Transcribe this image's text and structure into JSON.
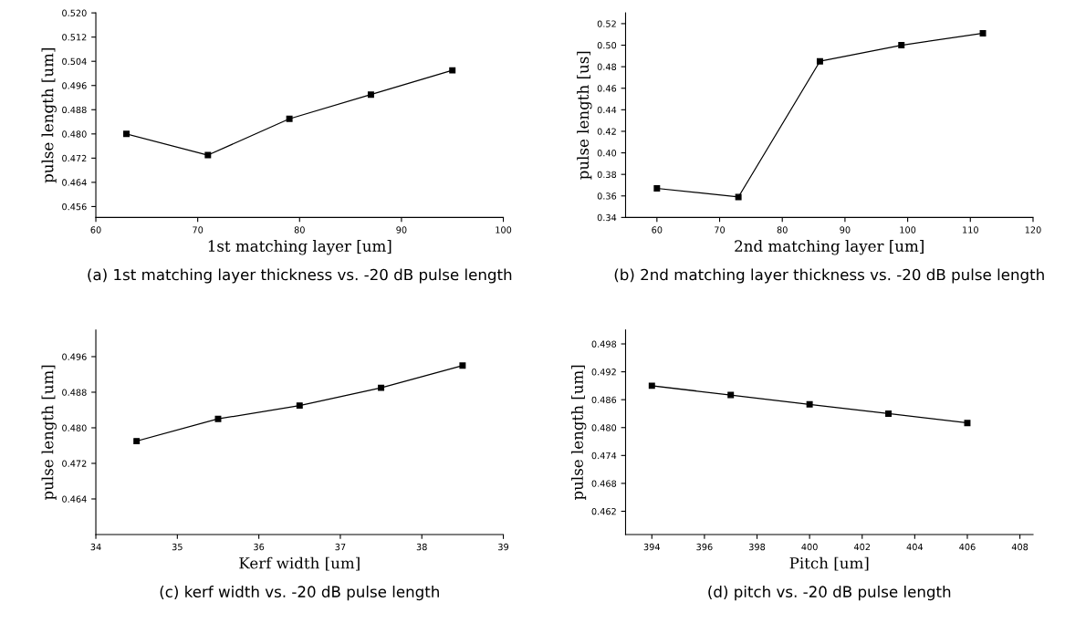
{
  "chart_data": [
    {
      "type": "line",
      "xlabel": "1st matching layer [um]",
      "ylabel": "pulse length [um]",
      "x": [
        63,
        71,
        79,
        87,
        95
      ],
      "values": [
        0.48,
        0.473,
        0.485,
        0.493,
        0.501
      ],
      "color": "#000000",
      "marker": "square",
      "xlim": [
        60,
        100
      ],
      "xticks": [
        60,
        70,
        80,
        90,
        100
      ],
      "ylim": [
        0.4524,
        0.52
      ],
      "yticks": [
        {
          "value": 0.456,
          "label": "0.456"
        },
        {
          "value": 0.464,
          "label": "0.464"
        },
        {
          "value": 0.472,
          "label": "0.472"
        },
        {
          "value": 0.48,
          "label": "0.480"
        },
        {
          "value": 0.488,
          "label": "0.488"
        },
        {
          "value": 0.496,
          "label": "0.496"
        },
        {
          "value": 0.504,
          "label": "0.504"
        },
        {
          "value": 0.512,
          "label": "0.512"
        },
        {
          "value": 0.52,
          "label": "0.520"
        }
      ],
      "annotations": [
        "(a) 1st matching layer thickness vs. -20 dB pulse length"
      ]
    },
    {
      "type": "line",
      "xlabel": "2nd matching layer [um]",
      "ylabel": "pulse length [us]",
      "x": [
        60,
        73,
        86,
        99,
        112
      ],
      "values": [
        0.367,
        0.359,
        0.485,
        0.5,
        0.511
      ],
      "color": "#000000",
      "marker": "square",
      "xlim": [
        55,
        120
      ],
      "xticks": [
        60,
        70,
        80,
        90,
        100,
        110,
        120
      ],
      "ylim": [
        0.34,
        0.53
      ],
      "yticks": [
        {
          "value": 0.34,
          "label": "0.34"
        },
        {
          "value": 0.36,
          "label": "0.36"
        },
        {
          "value": 0.38,
          "label": "0.38"
        },
        {
          "value": 0.4,
          "label": "0.40"
        },
        {
          "value": 0.42,
          "label": "0.42"
        },
        {
          "value": 0.44,
          "label": "0.44"
        },
        {
          "value": 0.46,
          "label": "0.46"
        },
        {
          "value": 0.48,
          "label": "0.48"
        },
        {
          "value": 0.5,
          "label": "0.50"
        },
        {
          "value": 0.52,
          "label": "0.52"
        }
      ],
      "annotations": [
        "(b) 2nd matching layer thickness vs. -20 dB pulse length"
      ]
    },
    {
      "type": "line",
      "xlabel": "Kerf width [um]",
      "ylabel": "pulse length [um]",
      "x": [
        34.5,
        35.5,
        36.5,
        37.5,
        38.5
      ],
      "values": [
        0.477,
        0.482,
        0.485,
        0.489,
        0.494
      ],
      "color": "#000000",
      "marker": "square",
      "xlim": [
        34,
        39
      ],
      "xticks": [
        34,
        35,
        36,
        37,
        38,
        39
      ],
      "ylim": [
        0.456,
        0.502
      ],
      "yticks": [
        {
          "value": 0.464,
          "label": "0.464"
        },
        {
          "value": 0.472,
          "label": "0.472"
        },
        {
          "value": 0.48,
          "label": "0.480"
        },
        {
          "value": 0.488,
          "label": "0.488"
        },
        {
          "value": 0.496,
          "label": "0.496"
        }
      ],
      "annotations": [
        "(c) kerf width vs. -20 dB pulse length"
      ]
    },
    {
      "type": "line",
      "xlabel": "Pitch [um]",
      "ylabel": "pulse length [um]",
      "x": [
        394,
        397,
        400,
        403,
        406
      ],
      "values": [
        0.489,
        0.487,
        0.485,
        0.483,
        0.481
      ],
      "color": "#000000",
      "marker": "square",
      "xlim": [
        393,
        408.5
      ],
      "xticks": [
        394,
        396,
        398,
        400,
        402,
        404,
        406,
        408
      ],
      "ylim": [
        0.457,
        0.501
      ],
      "yticks": [
        {
          "value": 0.462,
          "label": "0.462"
        },
        {
          "value": 0.468,
          "label": "0.468"
        },
        {
          "value": 0.474,
          "label": "0.474"
        },
        {
          "value": 0.48,
          "label": "0.480"
        },
        {
          "value": 0.486,
          "label": "0.486"
        },
        {
          "value": 0.492,
          "label": "0.492"
        },
        {
          "value": 0.498,
          "label": "0.498"
        }
      ],
      "annotations": [
        "(d) pitch vs. -20 dB pulse length"
      ]
    }
  ]
}
